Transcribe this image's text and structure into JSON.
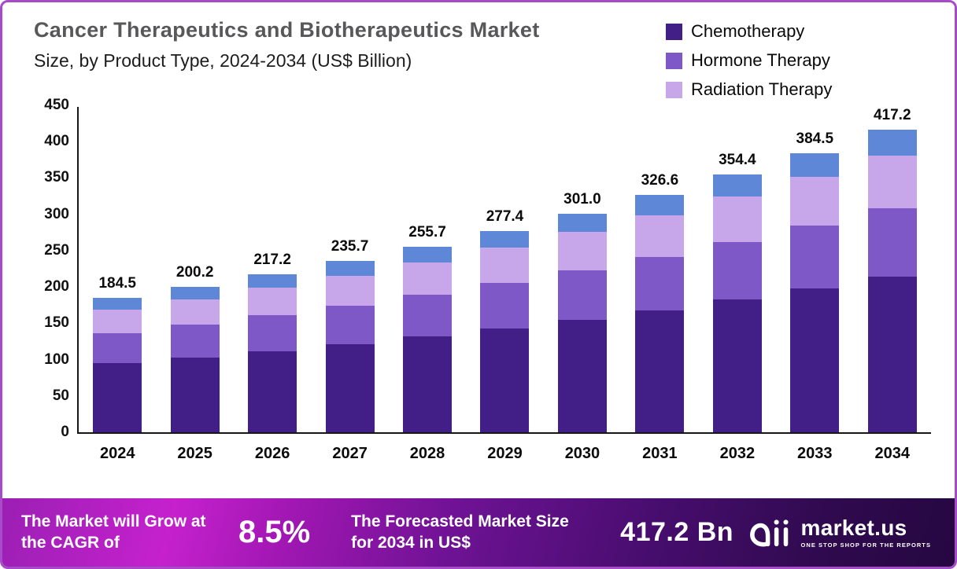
{
  "header": {
    "title_line1": "Cancer Therapeutics and Biotherapeutics Market",
    "title_line2": "Size, by Product Type, 2024-2034 (US$ Billion)"
  },
  "chart_data": {
    "type": "bar",
    "stacked": true,
    "title": "Cancer Therapeutics and Biotherapeutics Market Size, by Product Type, 2024-2034 (US$ Billion)",
    "categories": [
      "2024",
      "2025",
      "2026",
      "2027",
      "2028",
      "2029",
      "2030",
      "2031",
      "2032",
      "2033",
      "2034"
    ],
    "totals": [
      184.5,
      200.2,
      217.2,
      235.7,
      255.7,
      277.4,
      301.0,
      326.6,
      354.4,
      384.5,
      417.2
    ],
    "series": [
      {
        "name": "Chemotherapy",
        "color": "#421f87",
        "in_legend": true,
        "values": [
          95.0,
          103.1,
          111.9,
          121.4,
          131.7,
          142.9,
          155.0,
          168.2,
          182.5,
          198.0,
          214.9
        ]
      },
      {
        "name": "Hormone Therapy",
        "color": "#7f58c7",
        "in_legend": true,
        "values": [
          41.5,
          45.0,
          48.9,
          53.0,
          57.5,
          62.4,
          67.7,
          73.5,
          79.7,
          86.5,
          93.9
        ]
      },
      {
        "name": "Radiation Therapy",
        "color": "#c7a6e9",
        "in_legend": true,
        "values": [
          32.3,
          35.0,
          38.0,
          41.2,
          44.7,
          48.5,
          52.7,
          57.2,
          62.0,
          67.3,
          73.0
        ]
      },
      {
        "name": "(unlabeled)",
        "color": "#5e87d8",
        "in_legend": false,
        "values": [
          15.7,
          17.1,
          18.4,
          20.1,
          21.8,
          23.6,
          25.6,
          27.7,
          30.2,
          32.7,
          35.4
        ]
      }
    ],
    "xlabel": "",
    "ylabel": "",
    "ylim": [
      0,
      450
    ],
    "yticks": [
      0,
      50,
      100,
      150,
      200,
      250,
      300,
      350,
      400,
      450
    ],
    "grid": false,
    "legend_position": "top-right"
  },
  "banner": {
    "grow_text": "The Market will Grow at the CAGR of",
    "cagr_value": "8.5%",
    "forecast_text": "The Forecasted Market Size for 2034 in US$",
    "forecast_value": "417.2 Bn",
    "logo_name": "market.us",
    "logo_tagline": "ONE STOP SHOP FOR THE REPORTS"
  }
}
